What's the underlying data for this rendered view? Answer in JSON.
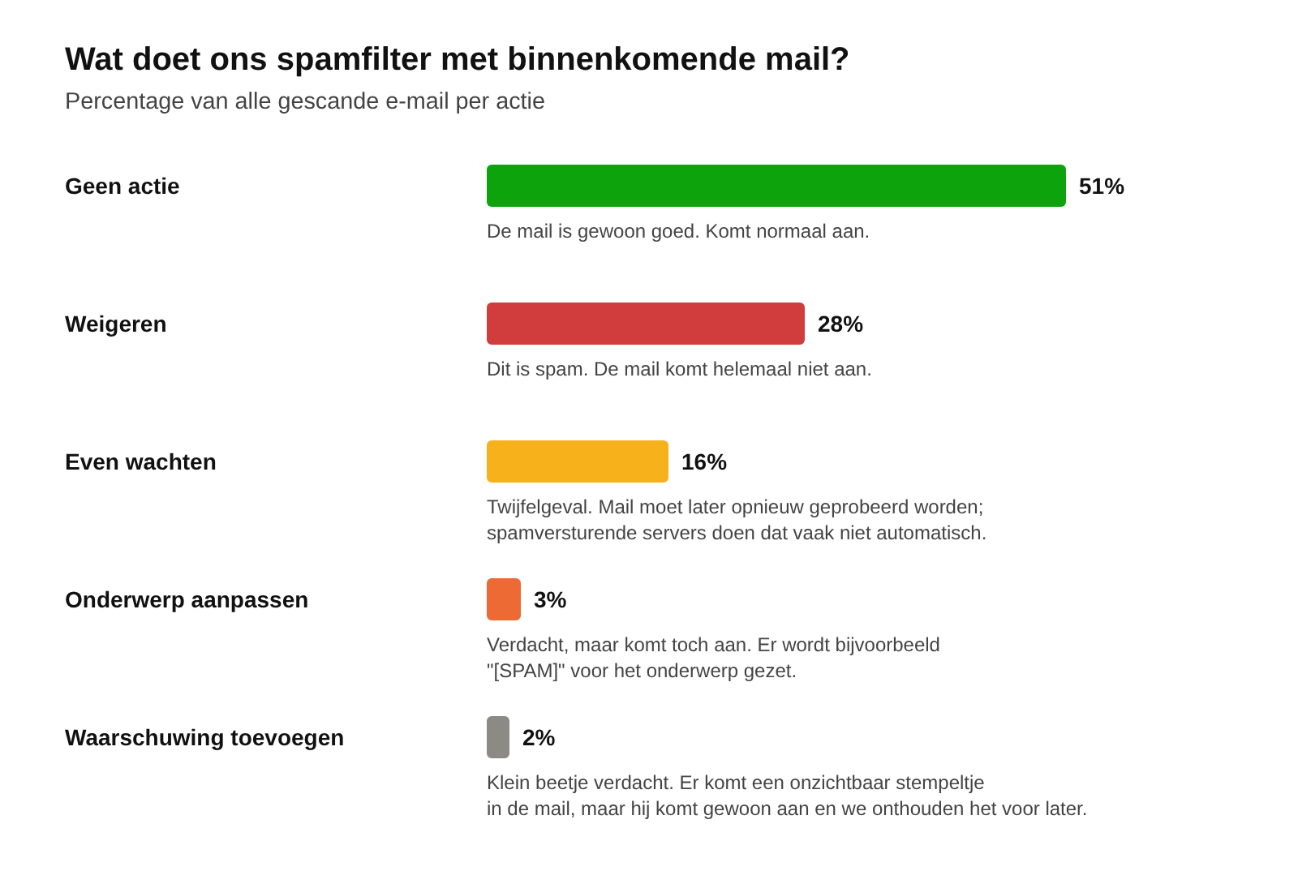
{
  "chart_data": {
    "type": "bar",
    "orientation": "horizontal",
    "title": "Wat doet ons spamfilter met binnenkomende mail?",
    "subtitle": "Percentage van alle gescande e-mail per actie",
    "categories": [
      "Geen actie",
      "Weigeren",
      "Even wachten",
      "Onderwerp aanpassen",
      "Waarschuwing toevoegen"
    ],
    "values": [
      51,
      28,
      16,
      3,
      2
    ],
    "colors": [
      "#0ca30c",
      "#d13d3d",
      "#f7b21b",
      "#ee6a34",
      "#8b8a84"
    ],
    "value_labels": [
      "51%",
      "28%",
      "16%",
      "3%",
      "2%"
    ],
    "annotations": [
      "De mail is gewoon goed. Komt normaal aan.",
      "Dit is spam. De mail komt helemaal niet aan.",
      "Twijfelgeval. Mail moet later opnieuw geprobeerd worden;\nspamversturende servers doen dat vaak niet automatisch.",
      "Verdacht, maar komt toch aan. Er wordt bijvoorbeeld\n\"[SPAM]\" voor het onderwerp gezet.",
      "Klein beetje verdacht. Er komt een onzichtbaar stempeltje\nin de mail, maar hij komt gewoon aan en we onthouden het voor later."
    ],
    "tick_labels": "y",
    "grid": false
  }
}
